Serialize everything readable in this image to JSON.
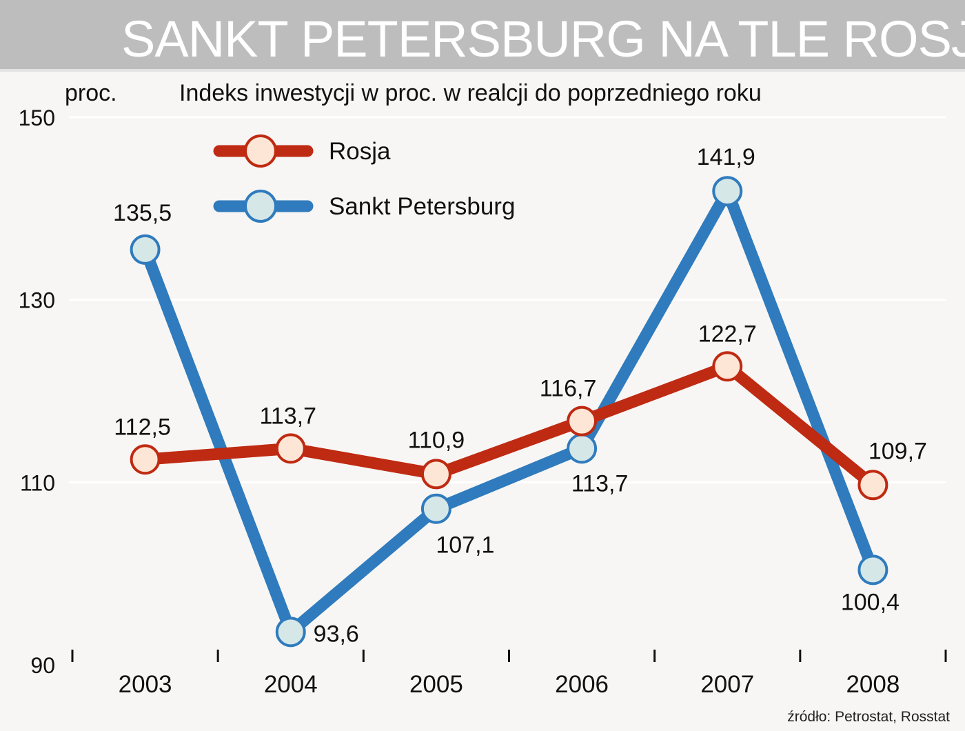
{
  "header": {
    "title": "SANKT PETERSBURG NA TLE ROSJI"
  },
  "colors": {
    "rosja_line": "#bf2a12",
    "rosja_marker": "#fde6d6",
    "spb_line": "#2f7bbd",
    "spb_marker": "#d6e7e8",
    "banner": "#bdbdbd",
    "background": "#f7f6f4"
  },
  "chart_data": {
    "type": "line",
    "title": "Indeks inwestycji w proc. w realcji do poprzedniego roku",
    "ylabel": "proc.",
    "xlabel": "",
    "categories": [
      "2003",
      "2004",
      "2005",
      "2006",
      "2007",
      "2008"
    ],
    "ylim": [
      90,
      150
    ],
    "yticks": [
      "90",
      "110",
      "130",
      "150"
    ],
    "grid": true,
    "legend_position": "top-left",
    "series": [
      {
        "name": "Rosja",
        "values": [
          112.5,
          113.7,
          110.9,
          116.7,
          122.7,
          109.7
        ],
        "labels": [
          "112,5",
          "113,7",
          "110,9",
          "116,7",
          "122,7",
          "109,7"
        ]
      },
      {
        "name": "Sankt Petersburg",
        "values": [
          135.5,
          93.6,
          107.1,
          113.7,
          141.9,
          100.4
        ],
        "labels": [
          "135,5",
          "93,6",
          "107,1",
          "113,7",
          "141,9",
          "100,4"
        ]
      }
    ],
    "source": "źródło: Petrostat, Rosstat"
  }
}
